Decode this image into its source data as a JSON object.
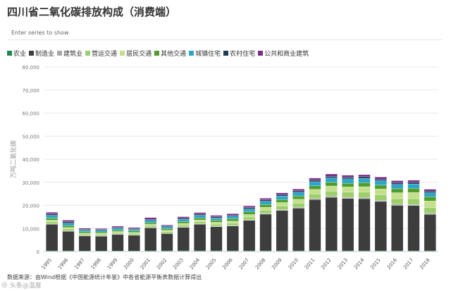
{
  "title": "四川省二氧化碳排放构成（消费端）",
  "search": {
    "placeholder": "Enter series to show"
  },
  "footer": {
    "source": "数据来源：由Wind根据《中国能源统计年鉴》中各省能源平衡表数据计算得出",
    "watermark": "头条@温度"
  },
  "chart_data": {
    "type": "bar",
    "stacked": true,
    "ylabel": "万吨二氧化碳",
    "ylim": [
      0,
      80000
    ],
    "yticks": [
      0,
      10000,
      20000,
      30000,
      40000,
      50000,
      60000,
      70000,
      80000
    ],
    "ytick_labels": [
      "0",
      "10,000",
      "20,000",
      "30,000",
      "40,000",
      "50,000",
      "60,000",
      "70,000",
      "80,000"
    ],
    "categories": [
      "1995",
      "1996",
      "1997",
      "1998",
      "1999",
      "2000",
      "2001",
      "2002",
      "2003",
      "2004",
      "2005",
      "2006",
      "2007",
      "2008",
      "2009",
      "2010",
      "2011",
      "2012",
      "2013",
      "2014",
      "2015",
      "2016",
      "2017",
      "2018"
    ],
    "series": [
      {
        "name": "农业",
        "color": "#1a8a4a",
        "values": [
          300,
          300,
          250,
          250,
          250,
          250,
          300,
          300,
          300,
          300,
          300,
          300,
          300,
          300,
          300,
          300,
          300,
          300,
          300,
          300,
          300,
          300,
          300,
          300
        ]
      },
      {
        "name": "制造业",
        "color": "#3d3d3d",
        "values": [
          11500,
          8500,
          6500,
          6400,
          7200,
          6800,
          10000,
          7500,
          10200,
          11500,
          10500,
          10800,
          13200,
          15900,
          17500,
          18500,
          22200,
          23200,
          22700,
          22600,
          21400,
          19700,
          19600,
          15800
        ]
      },
      {
        "name": "建筑业",
        "color": "#a9a9a9",
        "values": [
          200,
          200,
          150,
          150,
          150,
          150,
          200,
          150,
          200,
          200,
          200,
          200,
          250,
          300,
          350,
          400,
          450,
          500,
          500,
          500,
          500,
          500,
          500,
          500
        ]
      },
      {
        "name": "营运交通",
        "color": "#9ccf6b",
        "values": [
          900,
          800,
          600,
          600,
          600,
          600,
          700,
          700,
          800,
          900,
          900,
          1000,
          1200,
          1400,
          1600,
          1800,
          2000,
          2200,
          2200,
          2300,
          2400,
          2400,
          2500,
          2500
        ]
      },
      {
        "name": "居民交通",
        "color": "#c5e08c",
        "values": [
          700,
          600,
          500,
          500,
          500,
          500,
          600,
          600,
          700,
          800,
          800,
          900,
          1100,
          1300,
          1500,
          1700,
          2000,
          2200,
          2300,
          2400,
          2500,
          2600,
          2700,
          2800
        ]
      },
      {
        "name": "其他交通",
        "color": "#4f9d2d",
        "values": [
          900,
          800,
          600,
          600,
          600,
          600,
          700,
          700,
          800,
          900,
          900,
          1000,
          1100,
          1200,
          1300,
          1400,
          1500,
          1600,
          1600,
          1700,
          1700,
          1700,
          1800,
          1800
        ]
      },
      {
        "name": "城镇住宅",
        "color": "#2aa6c8",
        "values": [
          1200,
          1100,
          700,
          700,
          800,
          700,
          1000,
          800,
          1000,
          1100,
          1000,
          1100,
          1300,
          1400,
          1500,
          1600,
          1800,
          1900,
          1900,
          1900,
          1900,
          1900,
          1900,
          1800
        ]
      },
      {
        "name": "农村住宅",
        "color": "#1f3c5c",
        "values": [
          600,
          600,
          400,
          400,
          400,
          400,
          500,
          400,
          500,
          500,
          500,
          500,
          600,
          600,
          600,
          600,
          700,
          700,
          700,
          700,
          700,
          700,
          700,
          700
        ]
      },
      {
        "name": "公共和商业建筑",
        "color": "#7a2d86",
        "values": [
          700,
          700,
          400,
          400,
          500,
          400,
          700,
          400,
          600,
          700,
          600,
          600,
          700,
          700,
          800,
          800,
          900,
          1000,
          900,
          900,
          900,
          900,
          900,
          800
        ]
      }
    ]
  }
}
